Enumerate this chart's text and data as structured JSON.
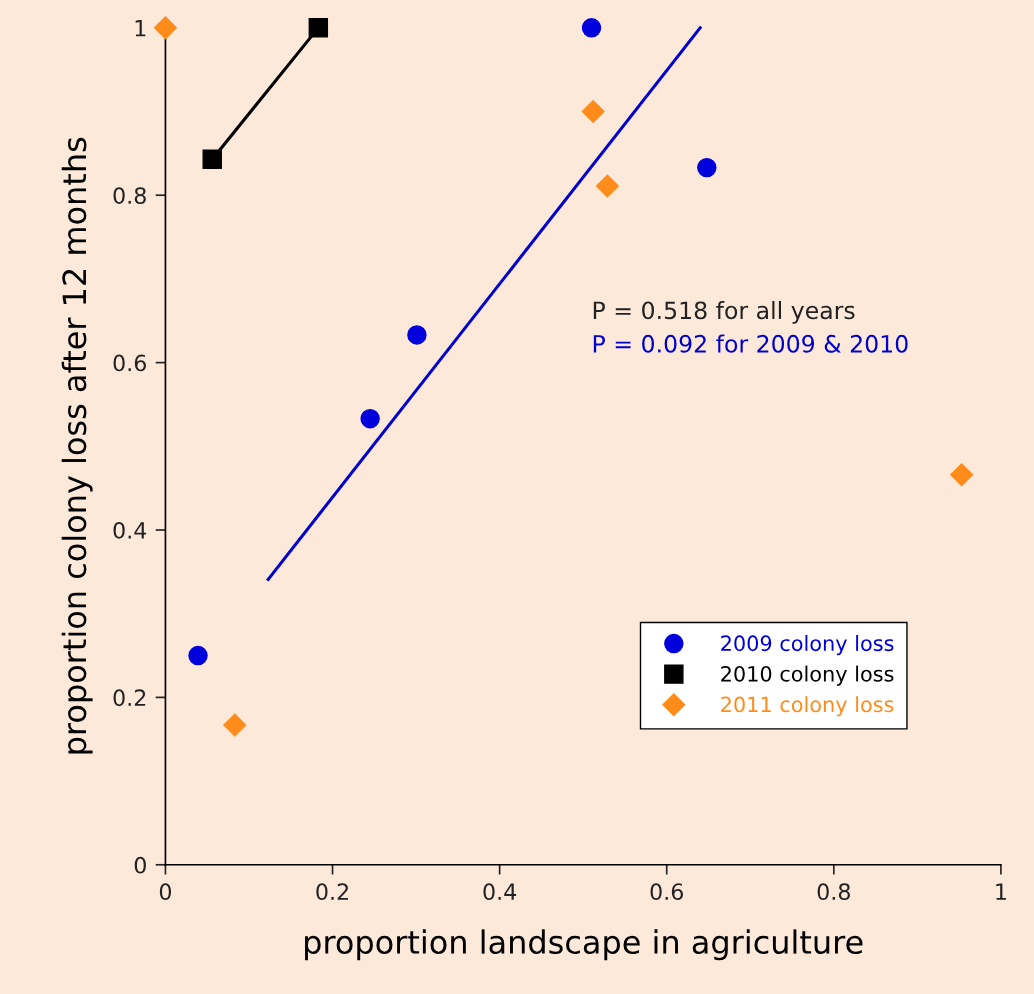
{
  "chart_data": {
    "type": "scatter",
    "xlabel": "proportion landscape in agriculture",
    "ylabel": "proportion colony loss after 12 months",
    "xlim": [
      0,
      1
    ],
    "ylim": [
      0,
      1
    ],
    "xticks": [
      0,
      0.2,
      0.4,
      0.6,
      0.8,
      1
    ],
    "yticks": [
      0,
      0.2,
      0.4,
      0.6,
      0.8,
      1
    ],
    "grid": false,
    "legend": "bottom right",
    "series": [
      {
        "name": "2009 colony loss",
        "type": "scatter",
        "marker": "circle",
        "color": "#0000dd",
        "x": [
          0.039,
          0.245,
          0.301,
          0.51,
          0.648
        ],
        "values": [
          0.25,
          0.533,
          0.633,
          1.0,
          0.833
        ]
      },
      {
        "name": "2010 colony loss",
        "type": "line",
        "marker": "square",
        "color": "#000000",
        "x": [
          0.056,
          0.183
        ],
        "values": [
          0.843,
          1.0
        ]
      },
      {
        "name": "2011 colony loss",
        "type": "scatter",
        "marker": "diamond",
        "color": "#ff8c1a",
        "x": [
          0.0,
          0.083,
          0.512,
          0.529,
          0.953
        ],
        "values": [
          1.0,
          0.167,
          0.9,
          0.811,
          0.466
        ]
      },
      {
        "type": "line",
        "marker": "none",
        "color": "#0000cc",
        "x": [
          0.123,
          0.64
        ],
        "values": [
          0.341,
          1.0
        ]
      }
    ],
    "annotations": [
      "P = 0.518 for all years",
      "P = 0.092 for 2009 & 2010"
    ]
  }
}
